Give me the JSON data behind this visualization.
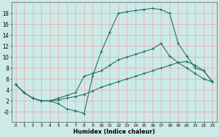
{
  "xlabel": "Humidex (Indice chaleur)",
  "bg_color": "#cceae8",
  "grid_color": "#e8b4b4",
  "line_color": "#1a6e64",
  "xlim": [
    -0.5,
    23.5
  ],
  "ylim": [
    -1.8,
    20.0
  ],
  "xticks": [
    0,
    1,
    2,
    3,
    4,
    5,
    6,
    7,
    8,
    9,
    10,
    11,
    12,
    13,
    14,
    15,
    16,
    17,
    18,
    19,
    20,
    21,
    22,
    23
  ],
  "yticks": [
    0,
    2,
    4,
    6,
    8,
    10,
    12,
    14,
    16,
    18
  ],
  "ytick_labels": [
    "-0",
    "2",
    "4",
    "6",
    "8",
    "10",
    "12",
    "14",
    "16",
    "18"
  ],
  "series1_x": [
    0,
    1,
    2,
    3,
    4,
    5,
    6,
    7,
    8,
    9,
    10,
    11,
    12,
    13,
    14,
    15,
    16,
    17,
    18,
    19,
    20,
    21,
    22,
    23
  ],
  "series1_y": [
    5,
    3.5,
    2.5,
    2.0,
    2.0,
    1.5,
    0.5,
    0.2,
    -0.3,
    6.5,
    11.0,
    14.5,
    18.0,
    18.3,
    18.5,
    18.7,
    18.9,
    18.7,
    18.0,
    12.5,
    10.2,
    8.0,
    7.5,
    5.5
  ],
  "series2_x": [
    0,
    1,
    2,
    3,
    4,
    5,
    6,
    7,
    8,
    9,
    10,
    11,
    12,
    13,
    14,
    15,
    16,
    17,
    18,
    19,
    20,
    21,
    22,
    23
  ],
  "series2_y": [
    5,
    3.5,
    2.5,
    2.0,
    2.0,
    2.5,
    3.0,
    3.5,
    6.5,
    7.0,
    7.5,
    8.5,
    9.5,
    10.0,
    10.5,
    11.0,
    11.5,
    12.5,
    10.2,
    9.0,
    8.0,
    7.0,
    6.0,
    5.5
  ],
  "series3_x": [
    0,
    1,
    2,
    3,
    4,
    5,
    6,
    7,
    8,
    9,
    10,
    11,
    12,
    13,
    14,
    15,
    16,
    17,
    18,
    19,
    20,
    21,
    22,
    23
  ],
  "series3_y": [
    5,
    3.5,
    2.5,
    2.0,
    2.0,
    2.2,
    2.5,
    2.8,
    3.2,
    3.8,
    4.5,
    5.0,
    5.5,
    6.0,
    6.5,
    7.0,
    7.5,
    8.0,
    8.5,
    9.0,
    9.2,
    8.5,
    7.5,
    5.5
  ]
}
